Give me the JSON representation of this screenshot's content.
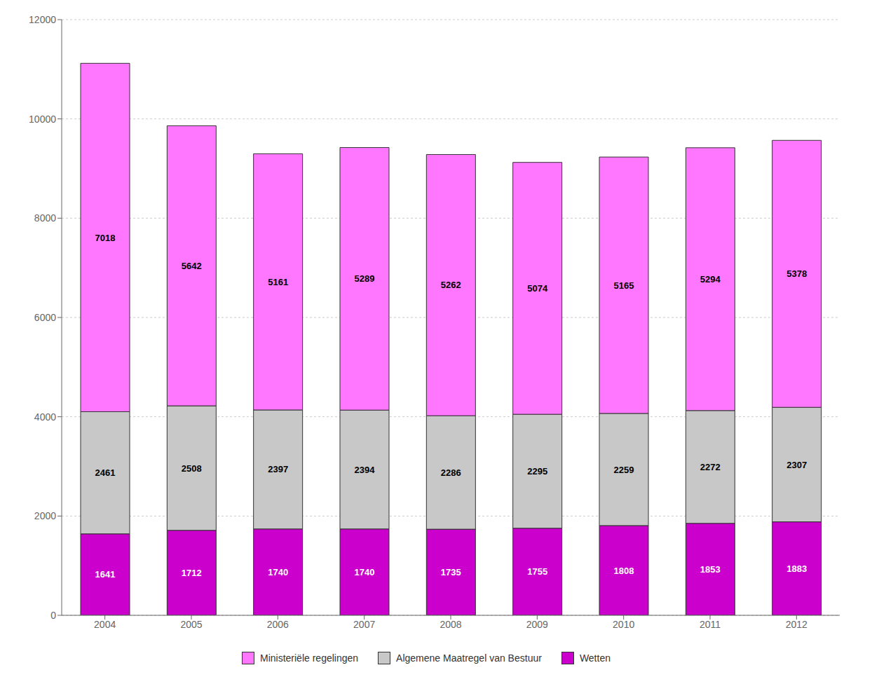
{
  "chart_data": {
    "type": "bar",
    "stacked": true,
    "data_labels": true,
    "grid": true,
    "legend": "bottom",
    "categories": [
      "2004",
      "2005",
      "2006",
      "2007",
      "2008",
      "2009",
      "2010",
      "2011",
      "2012"
    ],
    "series": [
      {
        "name": "Wetten",
        "color": "#CC00CC",
        "values": [
          1641,
          1712,
          1740,
          1740,
          1735,
          1755,
          1808,
          1853,
          1883
        ]
      },
      {
        "name": "Algemene Maatregel van Bestuur",
        "color": "#C8C8C8",
        "values": [
          2461,
          2508,
          2397,
          2394,
          2286,
          2295,
          2259,
          2272,
          2307
        ]
      },
      {
        "name": "Ministeriële regelingen",
        "color": "#FF77FF",
        "values": [
          7018,
          5642,
          5161,
          5289,
          5262,
          5074,
          5165,
          5294,
          5378
        ]
      }
    ],
    "ylim": [
      0,
      12000
    ],
    "yticks": [
      0,
      2000,
      4000,
      6000,
      8000,
      10000,
      12000
    ]
  }
}
